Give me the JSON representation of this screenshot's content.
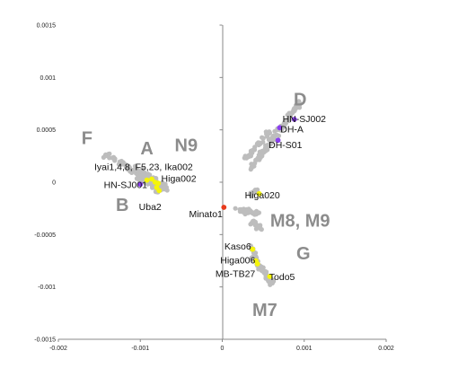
{
  "chart_data": {
    "type": "scatter",
    "xlim": [
      -0.002,
      0.002
    ],
    "ylim": [
      -0.0015,
      0.0015
    ],
    "x_ticks": [
      "-0.002",
      "-0.001",
      "0",
      "0.001",
      "0.002"
    ],
    "y_ticks": [
      "0.0015",
      "0.001",
      "0.0005",
      "0",
      "-0.0005",
      "-0.001",
      "-0.0015"
    ],
    "x_tick_values": [
      -0.002,
      -0.001,
      0,
      0.001,
      0.002
    ],
    "y_tick_values": [
      0.0015,
      0.001,
      0.0005,
      0,
      -0.0005,
      -0.001,
      -0.0015
    ],
    "grid": false,
    "colors": {
      "background_points": "#bdbdbd",
      "highlight_yellow": "#f5f50a",
      "highlight_purple": "#8a3ff0",
      "highlight_red": "#e83a1c",
      "cluster_label": "#8c8c8c",
      "axis": "#888888"
    },
    "cloud_segments": [
      {
        "from": [
          -0.00142,
          0.00026
        ],
        "to": [
          -0.00112,
          0.00013
        ],
        "n": 35,
        "spread_x": 5e-05,
        "spread_y": 3.5e-05
      },
      {
        "from": [
          -0.00112,
          0.00013
        ],
        "to": [
          -0.00068,
          -8e-05
        ],
        "n": 90,
        "spread_x": 7e-05,
        "spread_y": 6e-05
      },
      {
        "from": [
          -0.00098,
          0.0001
        ],
        "to": [
          -0.00076,
          -0.0001
        ],
        "n": 40,
        "spread_x": 4e-05,
        "spread_y": 4e-05
      },
      {
        "from": [
          0.00035,
          0.00014
        ],
        "to": [
          0.00095,
          0.00076
        ],
        "n": 120,
        "spread_x": 4e-05,
        "spread_y": 4e-05
      },
      {
        "from": [
          0.00028,
          0.00022
        ],
        "to": [
          0.00058,
          0.00049
        ],
        "n": 40,
        "spread_x": 4e-05,
        "spread_y": 3e-05
      },
      {
        "from": [
          0.00032,
          -0.00013
        ],
        "to": [
          0.00043,
          -8e-05
        ],
        "n": 12,
        "spread_x": 3e-05,
        "spread_y": 3e-05
      },
      {
        "from": [
          0.00018,
          -0.00026
        ],
        "to": [
          0.00045,
          -0.0003
        ],
        "n": 35,
        "spread_x": 5e-05,
        "spread_y": 4e-05
      },
      {
        "from": [
          0.00036,
          -0.00038
        ],
        "to": [
          0.00048,
          -0.00045
        ],
        "n": 22,
        "spread_x": 3e-05,
        "spread_y": 4e-05
      },
      {
        "from": [
          0.00034,
          -0.0006
        ],
        "to": [
          0.00042,
          -0.00072
        ],
        "n": 18,
        "spread_x": 2e-05,
        "spread_y": 3e-05
      },
      {
        "from": [
          0.00038,
          -0.00072
        ],
        "to": [
          0.00061,
          -0.00097
        ],
        "n": 70,
        "spread_x": 4e-05,
        "spread_y": 3e-05
      }
    ],
    "highlight_points": [
      {
        "x": -0.00092,
        "y": 2e-05,
        "color": "#f5f50a"
      },
      {
        "x": -0.00086,
        "y": 3e-05,
        "color": "#f5f50a"
      },
      {
        "x": -0.00082,
        "y": 0.0,
        "color": "#f5f50a"
      },
      {
        "x": -0.00078,
        "y": -1e-05,
        "color": "#f5f50a"
      },
      {
        "x": -0.0008,
        "y": -5e-05,
        "color": "#f5f50a"
      },
      {
        "x": -0.00077,
        "y": -8e-05,
        "color": "#f5f50a"
      },
      {
        "x": -0.001,
        "y": -2e-05,
        "color": "#8a3ff0"
      },
      {
        "x": 0.00088,
        "y": 0.0006,
        "color": "#8a3ff0"
      },
      {
        "x": 0.0007,
        "y": 0.00052,
        "color": "#8a3ff0"
      },
      {
        "x": 0.00068,
        "y": 0.0004,
        "color": "#8a3ff0"
      },
      {
        "x": 0.00045,
        "y": -0.00011,
        "color": "#f5f50a"
      },
      {
        "x": 2e-05,
        "y": -0.00024,
        "color": "#e83a1c"
      },
      {
        "x": 0.00037,
        "y": -0.00064,
        "color": "#f5f50a"
      },
      {
        "x": 0.00041,
        "y": -0.00075,
        "color": "#f5f50a"
      },
      {
        "x": 0.00043,
        "y": -0.00078,
        "color": "#f5f50a"
      },
      {
        "x": 0.00058,
        "y": -0.0009,
        "color": "#f5f50a"
      }
    ],
    "point_labels": [
      {
        "text": "HN-SJ002",
        "x": 0.001,
        "y": 0.0006
      },
      {
        "text": "DH-A",
        "x": 0.00085,
        "y": 0.0005
      },
      {
        "text": "DH-S01",
        "x": 0.00077,
        "y": 0.00035
      },
      {
        "text": "Iyai1,4,8, F5,23, Ika002",
        "x": -0.00096,
        "y": 0.00014
      },
      {
        "text": "Higa002",
        "x": -0.00053,
        "y": 3e-05
      },
      {
        "text": "HN-SJ001",
        "x": -0.00118,
        "y": -3e-05
      },
      {
        "text": "Uba2",
        "x": -0.00088,
        "y": -0.00024
      },
      {
        "text": "Higa020",
        "x": 0.00049,
        "y": -0.00013
      },
      {
        "text": "Minato1",
        "x": -0.0002,
        "y": -0.00031
      },
      {
        "text": "Kaso6",
        "x": 0.00019,
        "y": -0.00062
      },
      {
        "text": "Higa006",
        "x": 0.00019,
        "y": -0.00075
      },
      {
        "text": "MB-TB27",
        "x": 0.00016,
        "y": -0.00088
      },
      {
        "text": "Todo5",
        "x": 0.00073,
        "y": -0.00091
      }
    ],
    "cluster_labels": [
      {
        "text": "D",
        "x": 0.00095,
        "y": 0.00078
      },
      {
        "text": "F",
        "x": -0.00165,
        "y": 0.00041
      },
      {
        "text": "A",
        "x": -0.00092,
        "y": 0.00031
      },
      {
        "text": "N9",
        "x": -0.00044,
        "y": 0.00034
      },
      {
        "text": "B",
        "x": -0.00122,
        "y": -0.00023
      },
      {
        "text": "M8, M9",
        "x": 0.00095,
        "y": -0.00038
      },
      {
        "text": "G",
        "x": 0.00099,
        "y": -0.00069
      },
      {
        "text": "M7",
        "x": 0.00052,
        "y": -0.00123
      }
    ]
  }
}
